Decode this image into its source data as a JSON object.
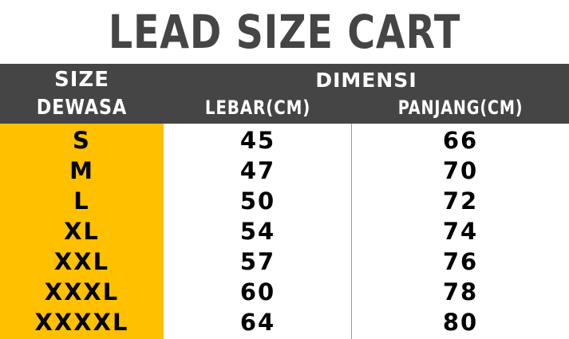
{
  "title": "LEAD SIZE CART",
  "header": {
    "size_label": "SIZE",
    "dewasa_label": "DEWASA",
    "dimensi_label": "DIMENSI",
    "lebar_label": "LEBAR(CM)",
    "panjang_label": "PANJANG(CM)"
  },
  "rows": [
    {
      "size": "S",
      "lebar": "45",
      "panjang": "66"
    },
    {
      "size": "M",
      "lebar": "47",
      "panjang": "70"
    },
    {
      "size": "L",
      "lebar": "50",
      "panjang": "72"
    },
    {
      "size": "XL",
      "lebar": "54",
      "panjang": "74"
    },
    {
      "size": "XXL",
      "lebar": "57",
      "panjang": "76"
    },
    {
      "size": "XXXL",
      "lebar": "60",
      "panjang": "78"
    },
    {
      "size": "XXXXL",
      "lebar": "64",
      "panjang": "80"
    }
  ],
  "colors": {
    "header_bg": "#454545",
    "size_column_bg": "#ffc000",
    "title_color": "#454545"
  }
}
